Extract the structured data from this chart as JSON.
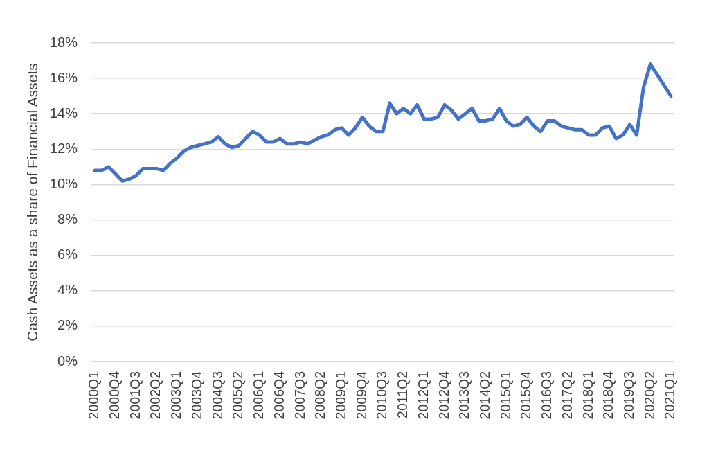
{
  "chart_data": {
    "type": "line",
    "ylabel": "Cash Assets as a share of Financial Assets",
    "categories": [
      "2000Q1",
      null,
      null,
      "2000Q4",
      null,
      null,
      "2001Q3",
      null,
      null,
      "2002Q2",
      null,
      null,
      "2003Q1",
      null,
      null,
      "2003Q4",
      null,
      null,
      "2004Q3",
      null,
      null,
      "2005Q2",
      null,
      null,
      "2006Q1",
      null,
      null,
      "2006Q4",
      null,
      null,
      "2007Q3",
      null,
      null,
      "2008Q2",
      null,
      null,
      "2009Q1",
      null,
      null,
      "2009Q4",
      null,
      null,
      "2010Q3",
      null,
      null,
      "2011Q2",
      null,
      null,
      "2012Q1",
      null,
      null,
      "2012Q4",
      null,
      null,
      "2013Q3",
      null,
      null,
      "2014Q2",
      null,
      null,
      "2015Q1",
      null,
      null,
      "2015Q4",
      null,
      null,
      "2016Q3",
      null,
      null,
      "2017Q2",
      null,
      null,
      "2018Q1",
      null,
      null,
      "2018Q4",
      null,
      null,
      "2019Q3",
      null,
      null,
      "2020Q2",
      null,
      null,
      "2021Q1"
    ],
    "values": [
      10.8,
      10.8,
      11.0,
      10.6,
      10.2,
      10.3,
      10.5,
      10.9,
      10.9,
      10.9,
      10.8,
      11.2,
      11.5,
      11.9,
      12.1,
      12.2,
      12.3,
      12.4,
      12.7,
      12.3,
      12.1,
      12.2,
      12.6,
      13.0,
      12.8,
      12.4,
      12.4,
      12.6,
      12.3,
      12.3,
      12.4,
      12.3,
      12.5,
      12.7,
      12.8,
      13.1,
      13.2,
      12.8,
      13.2,
      13.8,
      13.3,
      13.0,
      13.0,
      14.6,
      14.0,
      14.3,
      14.0,
      14.5,
      13.7,
      13.7,
      13.8,
      14.5,
      14.2,
      13.7,
      14.0,
      14.3,
      13.6,
      13.6,
      13.7,
      14.3,
      13.6,
      13.3,
      13.4,
      13.8,
      13.3,
      13.0,
      13.6,
      13.6,
      13.3,
      13.2,
      13.1,
      13.1,
      12.8,
      12.8,
      13.2,
      13.3,
      12.6,
      12.8,
      13.4,
      12.8,
      15.5,
      16.8,
      16.2,
      15.6,
      15.0
    ],
    "color": "#4472c4",
    "ylim": [
      0,
      18
    ],
    "yticks": [
      {
        "value": 0,
        "label": "0%"
      },
      {
        "value": 2,
        "label": "2%"
      },
      {
        "value": 4,
        "label": "4%"
      },
      {
        "value": 6,
        "label": "6%"
      },
      {
        "value": 8,
        "label": "8%"
      },
      {
        "value": 10,
        "label": "10%"
      },
      {
        "value": 12,
        "label": "12%"
      },
      {
        "value": 14,
        "label": "14%"
      },
      {
        "value": 16,
        "label": "16%"
      },
      {
        "value": 18,
        "label": "18%"
      }
    ],
    "grid": "y",
    "marker": "none",
    "line_style": "solid"
  }
}
